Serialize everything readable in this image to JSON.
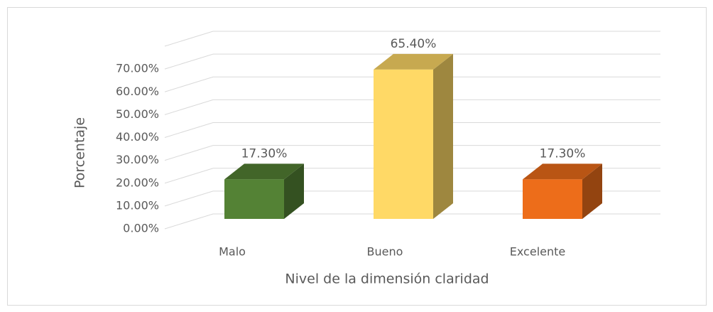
{
  "chart_data": {
    "type": "bar3d",
    "categories": [
      "Malo",
      "Bueno",
      "Excelente"
    ],
    "values": [
      17.3,
      65.4,
      17.3
    ],
    "value_labels": [
      "17.30%",
      "65.40%",
      "17.30%"
    ],
    "colors": [
      "#548235",
      "#ffd966",
      "#ed6d1a"
    ],
    "xlabel": "Nivel de la dimensión claridad",
    "ylabel": "Porcentaje",
    "ylim": [
      0,
      80
    ],
    "yticks": [
      {
        "value": 0,
        "label": "0.00%"
      },
      {
        "value": 10,
        "label": "10.00%"
      },
      {
        "value": 20,
        "label": "20.00%"
      },
      {
        "value": 30,
        "label": "30.00%"
      },
      {
        "value": 40,
        "label": "40.00%"
      },
      {
        "value": 50,
        "label": "50.00%"
      },
      {
        "value": 60,
        "label": "60.00%"
      },
      {
        "value": 70,
        "label": "70.00%"
      }
    ],
    "grid": true
  }
}
